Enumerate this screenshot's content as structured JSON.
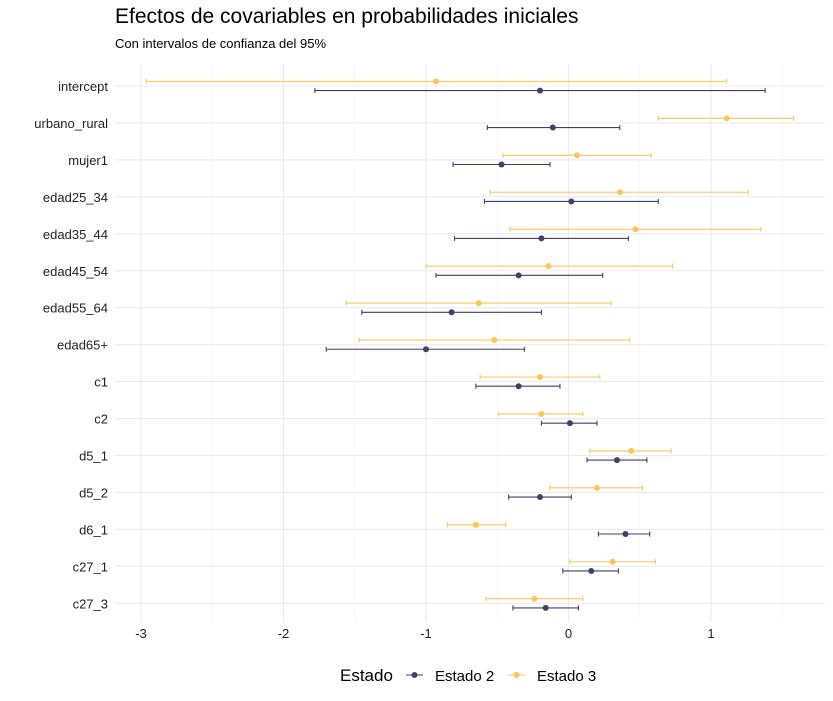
{
  "chart_data": {
    "type": "scatter",
    "title": "Efectos de covariables en probabilidades iniciales",
    "subtitle": "Con intervalos de confianza del 95%",
    "xlabel": "",
    "ylabel": "",
    "xlim": [
      -3.2,
      1.8
    ],
    "x_ticks": [
      -3,
      -2,
      -1,
      0,
      1
    ],
    "grid": true,
    "legend_position": "bottom",
    "legend_title": "Estado",
    "categories": [
      "intercept",
      "urbano_rural",
      "mujer1",
      "edad25_34",
      "edad35_44",
      "edad45_54",
      "edad55_64",
      "edad65+",
      "c1",
      "c2",
      "d5_1",
      "d5_2",
      "d6_1",
      "c27_1",
      "c27_3"
    ],
    "series": [
      {
        "name": "Estado 2",
        "color": "#453d6b",
        "points": [
          {
            "category": "intercept",
            "estimate": -0.2,
            "lower": -1.78,
            "upper": 1.38
          },
          {
            "category": "urbano_rural",
            "estimate": -0.11,
            "lower": -0.57,
            "upper": 0.36
          },
          {
            "category": "mujer1",
            "estimate": -0.47,
            "lower": -0.81,
            "upper": -0.13
          },
          {
            "category": "edad25_34",
            "estimate": 0.02,
            "lower": -0.59,
            "upper": 0.63
          },
          {
            "category": "edad35_44",
            "estimate": -0.19,
            "lower": -0.8,
            "upper": 0.42
          },
          {
            "category": "edad45_54",
            "estimate": -0.35,
            "lower": -0.93,
            "upper": 0.24
          },
          {
            "category": "edad55_64",
            "estimate": -0.82,
            "lower": -1.45,
            "upper": -0.19
          },
          {
            "category": "edad65+",
            "estimate": -1.0,
            "lower": -1.7,
            "upper": -0.31
          },
          {
            "category": "c1",
            "estimate": -0.35,
            "lower": -0.65,
            "upper": -0.06
          },
          {
            "category": "c2",
            "estimate": 0.01,
            "lower": -0.19,
            "upper": 0.2
          },
          {
            "category": "d5_1",
            "estimate": 0.34,
            "lower": 0.13,
            "upper": 0.55
          },
          {
            "category": "d5_2",
            "estimate": -0.2,
            "lower": -0.42,
            "upper": 0.02
          },
          {
            "category": "d6_1",
            "estimate": 0.4,
            "lower": 0.21,
            "upper": 0.57
          },
          {
            "category": "c27_1",
            "estimate": 0.16,
            "lower": -0.04,
            "upper": 0.35
          },
          {
            "category": "c27_3",
            "estimate": -0.16,
            "lower": -0.39,
            "upper": 0.07
          }
        ]
      },
      {
        "name": "Estado 3",
        "color": "#fcc65c",
        "points": [
          {
            "category": "intercept",
            "estimate": -0.93,
            "lower": -2.96,
            "upper": 1.11
          },
          {
            "category": "urbano_rural",
            "estimate": 1.11,
            "lower": 0.63,
            "upper": 1.58
          },
          {
            "category": "mujer1",
            "estimate": 0.06,
            "lower": -0.46,
            "upper": 0.58
          },
          {
            "category": "edad25_34",
            "estimate": 0.36,
            "lower": -0.55,
            "upper": 1.26
          },
          {
            "category": "edad35_44",
            "estimate": 0.47,
            "lower": -0.41,
            "upper": 1.35
          },
          {
            "category": "edad45_54",
            "estimate": -0.14,
            "lower": -1.0,
            "upper": 0.73
          },
          {
            "category": "edad55_64",
            "estimate": -0.63,
            "lower": -1.56,
            "upper": 0.3
          },
          {
            "category": "edad65+",
            "estimate": -0.52,
            "lower": -1.47,
            "upper": 0.43
          },
          {
            "category": "c1",
            "estimate": -0.2,
            "lower": -0.62,
            "upper": 0.22
          },
          {
            "category": "c2",
            "estimate": -0.19,
            "lower": -0.49,
            "upper": 0.1
          },
          {
            "category": "d5_1",
            "estimate": 0.44,
            "lower": 0.15,
            "upper": 0.72
          },
          {
            "category": "d5_2",
            "estimate": 0.2,
            "lower": -0.13,
            "upper": 0.52
          },
          {
            "category": "d6_1",
            "estimate": -0.65,
            "lower": -0.85,
            "upper": -0.44
          },
          {
            "category": "c27_1",
            "estimate": 0.31,
            "lower": 0.01,
            "upper": 0.61
          },
          {
            "category": "c27_3",
            "estimate": -0.24,
            "lower": -0.58,
            "upper": 0.1
          }
        ]
      }
    ]
  }
}
